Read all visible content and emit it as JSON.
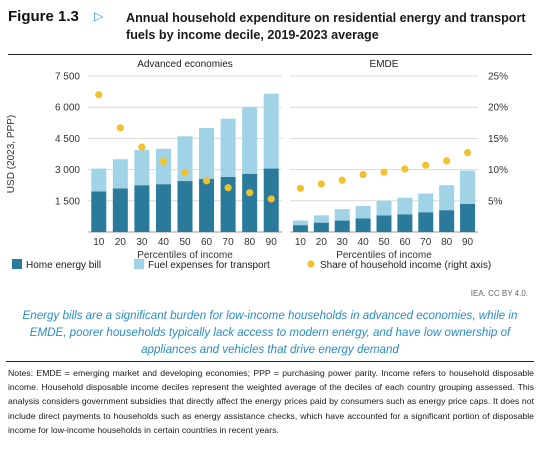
{
  "figure": {
    "label": "Figure 1.3",
    "arrow": "▷",
    "title": "Annual household expenditure on residential energy and transport fuels by income decile, 2019-2023 average"
  },
  "chart_data": {
    "type": "bar",
    "stacked": true,
    "y_axis_label": "USD (2023, PPP)",
    "y_ticks": [
      1500,
      3000,
      4500,
      6000,
      7500
    ],
    "y_tick_labels": [
      "1 500",
      "3 000",
      "4 500",
      "6 000",
      "7 500"
    ],
    "ylim": [
      0,
      7500
    ],
    "y2_ticks": [
      5,
      10,
      15,
      20,
      25
    ],
    "y2_tick_labels": [
      "5%",
      "10%",
      "15%",
      "20%",
      "25%"
    ],
    "y2lim": [
      0,
      25
    ],
    "grid": "horizontal",
    "x_axis_label": "Percentiles of income",
    "categories": [
      "10",
      "20",
      "30",
      "40",
      "50",
      "60",
      "70",
      "80",
      "90"
    ],
    "colors": {
      "home": "#2a7a9b",
      "transport": "#9fd3e5",
      "share": "#f2c12e"
    },
    "legend": {
      "placement": "bottom",
      "items": [
        "Home energy bill",
        "Fuel expenses for transport",
        "Share of household income (right axis)"
      ]
    },
    "panels": [
      {
        "title": "Advanced economies",
        "series": [
          {
            "name": "Home energy bill",
            "values": [
              1950,
              2100,
              2250,
              2300,
              2450,
              2550,
              2650,
              2800,
              3050
            ]
          },
          {
            "name": "Fuel expenses for transport",
            "values": [
              1100,
              1400,
              1700,
              1700,
              2150,
              2450,
              2800,
              3200,
              3600
            ]
          },
          {
            "name": "Share of household income (right axis)",
            "values": [
              22,
              16.7,
              13.6,
              11.3,
              9.5,
              8.2,
              7.1,
              6.3,
              5.3
            ]
          }
        ]
      },
      {
        "title": "EMDE",
        "series": [
          {
            "name": "Home energy bill",
            "values": [
              330,
              450,
              550,
              650,
              800,
              850,
              950,
              1050,
              1350
            ]
          },
          {
            "name": "Fuel expenses for transport",
            "values": [
              220,
              350,
              550,
              600,
              700,
              800,
              900,
              1200,
              1600
            ]
          },
          {
            "name": "Share of household income (right axis)",
            "values": [
              7.0,
              7.7,
              8.3,
              9.2,
              9.6,
              10.1,
              10.7,
              11.4,
              12.7
            ]
          }
        ]
      }
    ]
  },
  "credit": "IEA. CC BY 4.0.",
  "takeaway": "Energy bills are a significant burden for low-income households in advanced economies, while in EMDE, poorer households typically lack access to modern energy, and have low ownership of appliances and vehicles that drive energy demand",
  "notes": "Notes: EMDE = emerging market and developing economies; PPP = purchasing power parity. Income refers to household disposable income. Household disposable income deciles represent the weighted average of the deciles of each country grouping assessed. This analysis considers government subsidies that directly affect the energy prices paid by consumers such as energy price caps. It does not include direct payments to households such as energy assistance checks, which have accounted for a significant portion of disposable income for low-income households in certain countries in recent years."
}
